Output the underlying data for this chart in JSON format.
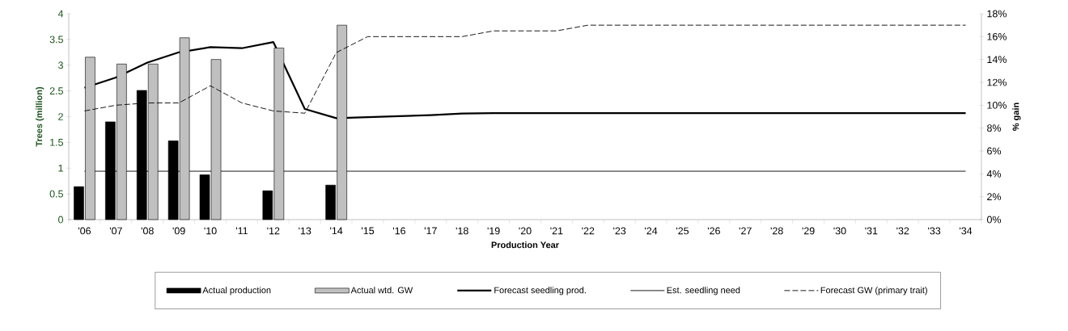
{
  "chart_data": {
    "type": "bar",
    "xlabel": "Production Year",
    "ylabel": "Trees (million)",
    "y2label": "% gain",
    "categories": [
      "'06",
      "'07",
      "'08",
      "'09",
      "'10",
      "'11",
      "'12",
      "'13",
      "'14",
      "'15",
      "'16",
      "'17",
      "'18",
      "'19",
      "'20",
      "'21",
      "'22",
      "'23",
      "'24",
      "'25",
      "'26",
      "'27",
      "'28",
      "'29",
      "'30",
      "'31",
      "'32",
      "'33",
      "'34"
    ],
    "ylim": [
      0,
      4
    ],
    "yticks": [
      0,
      0.5,
      1,
      1.5,
      2,
      2.5,
      3,
      3.5,
      4
    ],
    "y2lim": [
      0,
      18
    ],
    "y2ticks": [
      {
        "value": 0,
        "label": "0%"
      },
      {
        "value": 2,
        "label": "2%"
      },
      {
        "value": 4,
        "label": "4%"
      },
      {
        "value": 6,
        "label": "6%"
      },
      {
        "value": 8,
        "label": "8%"
      },
      {
        "value": 10,
        "label": "10%"
      },
      {
        "value": 12,
        "label": "12%"
      },
      {
        "value": 14,
        "label": "14%"
      },
      {
        "value": 16,
        "label": "16%"
      },
      {
        "value": 18,
        "label": "18%"
      }
    ],
    "legend": "bottom",
    "grid": false,
    "series": [
      {
        "name": "Actual production",
        "color": "#000000",
        "values": [
          0.64,
          1.9,
          2.51,
          1.53,
          0.87,
          null,
          0.56,
          null,
          0.67,
          null,
          null,
          null,
          null,
          null,
          null,
          null,
          null,
          null,
          null,
          null,
          null,
          null,
          null,
          null,
          null,
          null,
          null,
          null,
          null
        ]
      },
      {
        "name": "Actual wtd. GW",
        "axis": "y2",
        "color": "#c0c0c0",
        "values": [
          14.2,
          13.6,
          13.6,
          15.9,
          14.0,
          null,
          15.0,
          null,
          17.0,
          null,
          null,
          null,
          null,
          null,
          null,
          null,
          null,
          null,
          null,
          null,
          null,
          null,
          null,
          null,
          null,
          null,
          null,
          null,
          null
        ]
      },
      {
        "name": "Forecast seedling prod.",
        "type": "line",
        "color": "#000000",
        "line_style": "solid",
        "values": [
          2.56,
          2.76,
          3.05,
          3.25,
          3.35,
          3.33,
          3.45,
          2.15,
          1.97,
          1.99,
          2.01,
          2.03,
          2.06,
          2.07,
          2.07,
          2.07,
          2.07,
          2.07,
          2.07,
          2.07,
          2.07,
          2.07,
          2.07,
          2.07,
          2.07,
          2.07,
          2.07,
          2.07,
          2.07
        ]
      },
      {
        "name": "Est. seedling need",
        "type": "line",
        "color": "#000000",
        "line_style": "solid",
        "values": [
          0.94,
          0.94,
          0.94,
          0.94,
          0.94,
          0.94,
          0.94,
          0.94,
          0.94,
          0.94,
          0.94,
          0.94,
          0.94,
          0.94,
          0.94,
          0.94,
          0.94,
          0.94,
          0.94,
          0.94,
          0.94,
          0.94,
          0.94,
          0.94,
          0.94,
          0.94,
          0.94,
          0.94,
          0.94
        ]
      },
      {
        "name": "Forecast GW (primary trait)",
        "type": "line",
        "axis": "y2",
        "color": "#000000",
        "line_style": "dashed",
        "values": [
          9.5,
          10.0,
          10.2,
          10.2,
          11.7,
          10.2,
          9.5,
          9.3,
          14.6,
          16.0,
          16.0,
          16.0,
          16.0,
          16.5,
          16.5,
          16.5,
          17.0,
          17.0,
          17.0,
          17.0,
          17.0,
          17.0,
          17.0,
          17.0,
          17.0,
          17.0,
          17.0,
          17.0,
          17.0
        ]
      }
    ]
  }
}
